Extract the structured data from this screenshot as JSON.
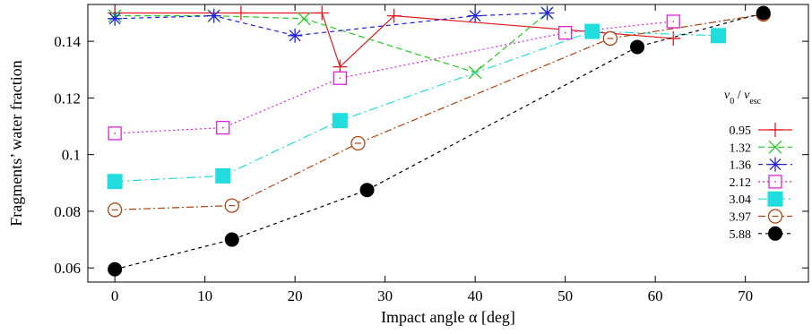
{
  "chart_data": {
    "type": "line",
    "title": "",
    "xlabel": "Impact angle α [deg]",
    "ylabel": "Fragments’ water fraction",
    "xlim": [
      -3,
      77
    ],
    "ylim": [
      0.055,
      0.153
    ],
    "x_ticks": [
      0,
      10,
      20,
      30,
      40,
      50,
      60,
      70
    ],
    "x_tick_labels": [
      "0",
      "10",
      "20",
      "30",
      "40",
      "50",
      "60",
      "70"
    ],
    "y_ticks": [
      0.06,
      0.08,
      0.1,
      0.12,
      0.14
    ],
    "y_tick_labels": [
      "0.06",
      "0.08",
      "0.1",
      "0.12",
      "0.14"
    ],
    "grid": false,
    "legend_placement": "right",
    "legend_title": "v0 / vesc",
    "legend_title_parts": {
      "v": "v",
      "sub0": "0",
      "slash": " / ",
      "sub_esc": "esc"
    },
    "series": [
      {
        "name": "0.95",
        "color": "#e41a1c",
        "marker": "plus",
        "dash": "",
        "x": [
          0,
          14,
          23,
          25,
          31,
          62
        ],
        "y": [
          0.15,
          0.15,
          0.15,
          0.131,
          0.149,
          0.141
        ]
      },
      {
        "name": "1.32",
        "color": "#22cc22",
        "marker": "cross",
        "dash": "7,4",
        "x": [
          0,
          11,
          21,
          40,
          48
        ],
        "y": [
          0.149,
          0.149,
          0.148,
          0.129,
          0.15
        ]
      },
      {
        "name": "1.36",
        "color": "#2222dd",
        "marker": "star",
        "dash": "5,4",
        "x": [
          0,
          11,
          20,
          40,
          48
        ],
        "y": [
          0.148,
          0.149,
          0.142,
          0.149,
          0.15
        ]
      },
      {
        "name": "2.12",
        "color": "#dd22dd",
        "marker": "square-open",
        "dash": "2,3",
        "x": [
          0,
          12,
          25,
          50,
          62
        ],
        "y": [
          0.1075,
          0.1095,
          0.127,
          0.143,
          0.147
        ]
      },
      {
        "name": "3.04",
        "color": "#22dddd",
        "marker": "square-filled",
        "dash": "10,4,2,4",
        "x": [
          0,
          12,
          25,
          53,
          67
        ],
        "y": [
          0.0905,
          0.0925,
          0.112,
          0.1435,
          0.142
        ]
      },
      {
        "name": "3.97",
        "color": "#b04010",
        "marker": "circle-open",
        "dash": "8,3,2,3",
        "x": [
          0,
          13,
          27,
          55,
          72
        ],
        "y": [
          0.0805,
          0.082,
          0.104,
          0.141,
          0.1495
        ]
      },
      {
        "name": "5.88",
        "color": "#000000",
        "marker": "circle-filled",
        "dash": "4,4",
        "x": [
          0,
          13,
          28,
          58,
          72
        ],
        "y": [
          0.0595,
          0.07,
          0.0875,
          0.138,
          0.15
        ]
      }
    ]
  }
}
